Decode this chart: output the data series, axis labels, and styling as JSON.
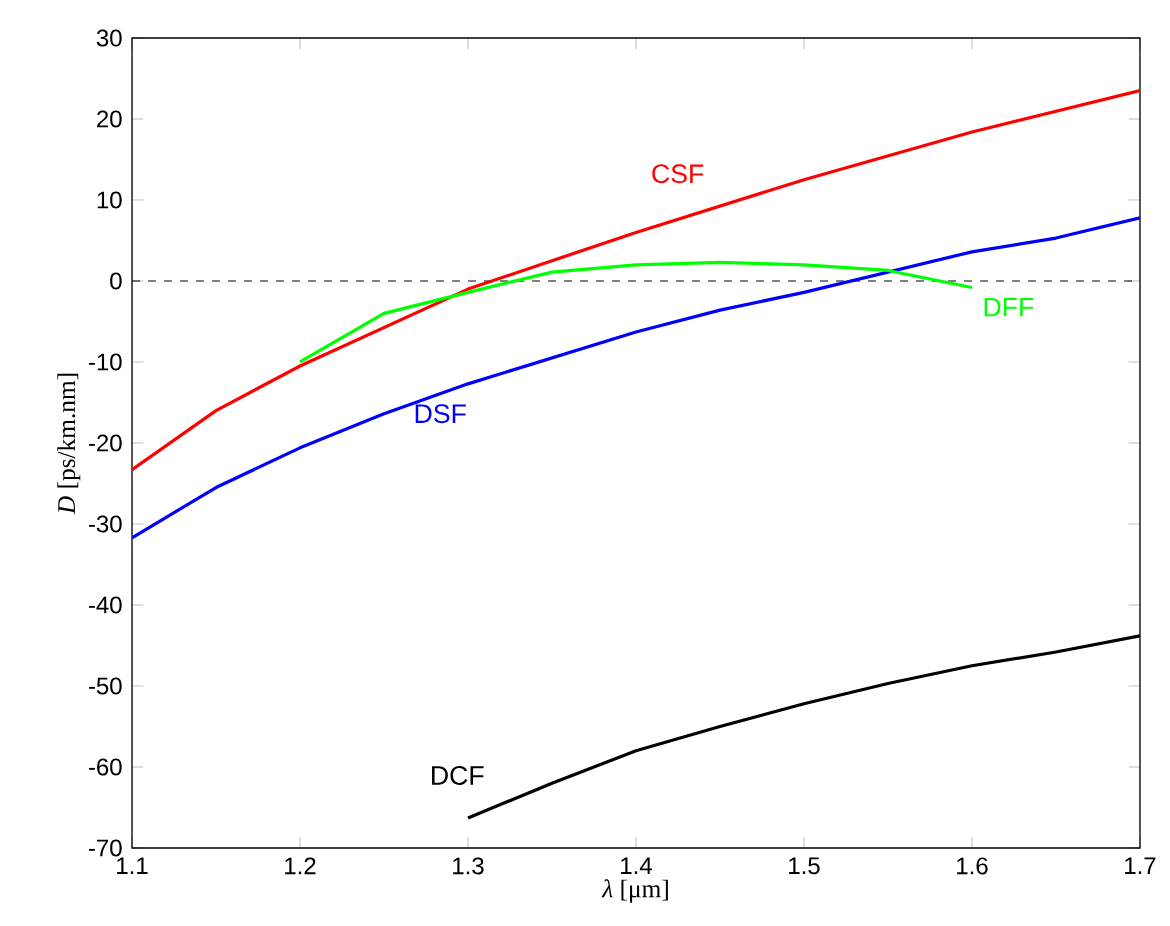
{
  "chart_data": {
    "type": "line",
    "xlabel": "*λ* [μm]",
    "ylabel": "*D* [ps/km.nm]",
    "xlim": [
      1.1,
      1.7
    ],
    "ylim": [
      -70,
      30
    ],
    "xticks": [
      1.1,
      1.2,
      1.3,
      1.4,
      1.5,
      1.6,
      1.7
    ],
    "yticks": [
      -70,
      -60,
      -50,
      -40,
      -30,
      -20,
      -10,
      0,
      10,
      20,
      30
    ],
    "grid": false,
    "marker": "none",
    "line_style": "solid",
    "ref_lines": [
      {
        "axis": "y",
        "value": 0,
        "color": "#000000",
        "line_style": "dashed"
      }
    ],
    "series": [
      {
        "name": "CSF",
        "color": "#ff0000",
        "x": [
          1.1,
          1.15,
          1.2,
          1.3,
          1.4,
          1.5,
          1.6,
          1.7
        ],
        "values": [
          -23.3,
          -16,
          -10.5,
          -1,
          6,
          12.5,
          18.4,
          23.5
        ]
      },
      {
        "name": "DSF",
        "color": "#0000ff",
        "x": [
          1.1,
          1.15,
          1.2,
          1.25,
          1.3,
          1.35,
          1.4,
          1.45,
          1.5,
          1.55,
          1.6,
          1.65,
          1.7
        ],
        "values": [
          -31.7,
          -25.5,
          -20.6,
          -16.4,
          -12.7,
          -9.5,
          -6.3,
          -3.6,
          -1.4,
          1.1,
          3.6,
          5.3,
          7.8
        ]
      },
      {
        "name": "DFF",
        "color": "#00ff00",
        "x": [
          1.2,
          1.25,
          1.3,
          1.35,
          1.4,
          1.45,
          1.5,
          1.55,
          1.6
        ],
        "values": [
          -10,
          -4,
          -1.4,
          1.1,
          2,
          2.3,
          2,
          1.3,
          -0.8
        ]
      },
      {
        "name": "DCF",
        "color": "#000000",
        "x": [
          1.3,
          1.35,
          1.4,
          1.45,
          1.5,
          1.55,
          1.6,
          1.65,
          1.7
        ],
        "values": [
          -66.3,
          -62,
          -58,
          -55,
          -52.2,
          -49.7,
          -47.5,
          -45.8,
          -43.8
        ]
      }
    ]
  }
}
